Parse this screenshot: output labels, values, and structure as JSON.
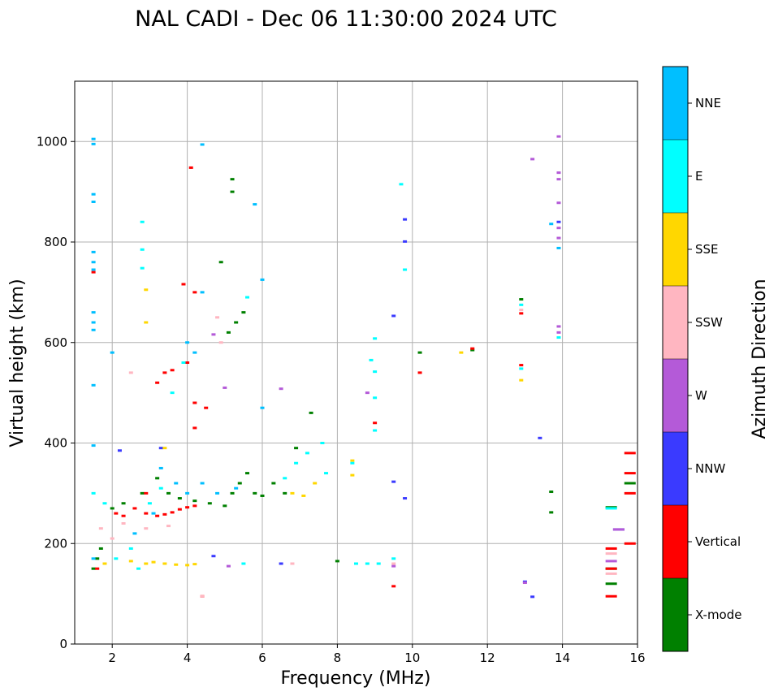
{
  "chart_data": {
    "type": "scatter",
    "title": "NAL CADI - Dec 06 11:30:00 2024 UTC",
    "xlabel": "Frequency (MHz)",
    "ylabel": "Virtual height (km)",
    "xlim": [
      1,
      16
    ],
    "ylim": [
      0,
      1120
    ],
    "xticks": [
      2,
      4,
      6,
      8,
      10,
      12,
      14,
      16
    ],
    "yticks": [
      0,
      200,
      400,
      600,
      800,
      1000
    ],
    "grid": true,
    "colorbar": {
      "label": "Azimuth Direction",
      "categories": [
        {
          "name": "X-mode",
          "color": "#008000"
        },
        {
          "name": "Vertical",
          "color": "#ff0000"
        },
        {
          "name": "NNW",
          "color": "#3a3aff"
        },
        {
          "name": "W",
          "color": "#b45ad8"
        },
        {
          "name": "SSW",
          "color": "#ffb6c1"
        },
        {
          "name": "SSE",
          "color": "#ffd700"
        },
        {
          "name": "E",
          "color": "#00ffff"
        },
        {
          "name": "NNE",
          "color": "#00bfff"
        }
      ]
    },
    "series": [
      {
        "name": "X-mode",
        "points": [
          [
            1.5,
            150
          ],
          [
            1.6,
            170
          ],
          [
            1.7,
            190
          ],
          [
            2.0,
            270
          ],
          [
            2.3,
            280
          ],
          [
            2.8,
            300
          ],
          [
            3.2,
            330
          ],
          [
            3.5,
            300
          ],
          [
            3.8,
            290
          ],
          [
            4.2,
            285
          ],
          [
            4.6,
            280
          ],
          [
            5.0,
            275
          ],
          [
            5.2,
            300
          ],
          [
            5.4,
            320
          ],
          [
            5.6,
            340
          ],
          [
            5.8,
            300
          ],
          [
            6.0,
            295
          ],
          [
            6.3,
            320
          ],
          [
            6.6,
            300
          ],
          [
            6.9,
            390
          ],
          [
            7.3,
            460
          ],
          [
            5.1,
            620
          ],
          [
            5.3,
            640
          ],
          [
            5.5,
            660
          ],
          [
            5.2,
            925
          ],
          [
            5.2,
            900
          ],
          [
            4.9,
            760
          ],
          [
            8.0,
            165
          ],
          [
            10.2,
            580
          ],
          [
            11.6,
            585
          ],
          [
            12.9,
            686
          ],
          [
            13.7,
            262
          ],
          [
            13.7,
            303
          ],
          [
            15.3,
            272
          ],
          [
            15.3,
            150
          ],
          [
            15.3,
            120
          ],
          [
            15.8,
            320
          ]
        ]
      },
      {
        "name": "Vertical",
        "points": [
          [
            1.5,
            740
          ],
          [
            1.6,
            150
          ],
          [
            2.1,
            260
          ],
          [
            2.3,
            255
          ],
          [
            2.6,
            270
          ],
          [
            2.9,
            260
          ],
          [
            3.2,
            255
          ],
          [
            3.4,
            258
          ],
          [
            3.6,
            262
          ],
          [
            3.8,
            268
          ],
          [
            4.0,
            272
          ],
          [
            4.2,
            275
          ],
          [
            2.9,
            300
          ],
          [
            3.2,
            520
          ],
          [
            3.4,
            540
          ],
          [
            3.6,
            545
          ],
          [
            3.9,
            716
          ],
          [
            4.2,
            700
          ],
          [
            4.1,
            948
          ],
          [
            4.0,
            560
          ],
          [
            4.2,
            480
          ],
          [
            4.2,
            430
          ],
          [
            4.5,
            470
          ],
          [
            9.0,
            440
          ],
          [
            9.5,
            115
          ],
          [
            10.2,
            540
          ],
          [
            11.6,
            588
          ],
          [
            12.9,
            658
          ],
          [
            12.9,
            555
          ],
          [
            15.3,
            95
          ],
          [
            15.3,
            150
          ],
          [
            15.3,
            190
          ],
          [
            15.8,
            300
          ],
          [
            15.8,
            200
          ],
          [
            15.8,
            380
          ],
          [
            15.8,
            340
          ],
          [
            4.4,
            95
          ]
        ]
      },
      {
        "name": "NNW",
        "points": [
          [
            2.2,
            385
          ],
          [
            3.3,
            390
          ],
          [
            4.7,
            175
          ],
          [
            6.5,
            160
          ],
          [
            9.5,
            653
          ],
          [
            9.5,
            323
          ],
          [
            9.8,
            845
          ],
          [
            9.8,
            801
          ],
          [
            9.8,
            290
          ],
          [
            13.0,
            124
          ],
          [
            13.2,
            94
          ],
          [
            13.4,
            410
          ],
          [
            15.5,
            228
          ],
          [
            13.9,
            840
          ]
        ]
      },
      {
        "name": "W",
        "points": [
          [
            4.7,
            616
          ],
          [
            5.0,
            510
          ],
          [
            6.5,
            508
          ],
          [
            8.8,
            500
          ],
          [
            9.5,
            155
          ],
          [
            13.0,
            122
          ],
          [
            13.2,
            965
          ],
          [
            13.9,
            1010
          ],
          [
            13.9,
            938
          ],
          [
            13.9,
            925
          ],
          [
            13.9,
            878
          ],
          [
            13.9,
            828
          ],
          [
            13.9,
            808
          ],
          [
            13.9,
            632
          ],
          [
            13.9,
            620
          ],
          [
            15.5,
            228
          ],
          [
            15.3,
            165
          ],
          [
            5.1,
            155
          ]
        ]
      },
      {
        "name": "SSW",
        "points": [
          [
            1.7,
            230
          ],
          [
            2.0,
            210
          ],
          [
            2.3,
            240
          ],
          [
            2.5,
            540
          ],
          [
            2.9,
            230
          ],
          [
            3.5,
            235
          ],
          [
            4.4,
            95
          ],
          [
            4.8,
            650
          ],
          [
            4.9,
            600
          ],
          [
            6.8,
            160
          ],
          [
            9.5,
            160
          ],
          [
            12.9,
            665
          ],
          [
            15.3,
            180
          ],
          [
            15.3,
            140
          ]
        ]
      },
      {
        "name": "SSE",
        "points": [
          [
            1.8,
            160
          ],
          [
            2.5,
            165
          ],
          [
            2.9,
            160
          ],
          [
            3.1,
            163
          ],
          [
            3.4,
            160
          ],
          [
            3.7,
            158
          ],
          [
            4.0,
            157
          ],
          [
            4.2,
            159
          ],
          [
            3.4,
            390
          ],
          [
            6.8,
            300
          ],
          [
            7.1,
            295
          ],
          [
            7.4,
            320
          ],
          [
            8.4,
            336
          ],
          [
            8.4,
            365
          ],
          [
            11.3,
            580
          ],
          [
            12.9,
            525
          ],
          [
            2.9,
            640
          ],
          [
            2.9,
            705
          ]
        ]
      },
      {
        "name": "E",
        "points": [
          [
            1.5,
            300
          ],
          [
            1.8,
            280
          ],
          [
            2.1,
            170
          ],
          [
            2.5,
            190
          ],
          [
            2.7,
            150
          ],
          [
            3.0,
            280
          ],
          [
            3.3,
            310
          ],
          [
            3.6,
            500
          ],
          [
            3.9,
            560
          ],
          [
            6.6,
            330
          ],
          [
            6.9,
            360
          ],
          [
            7.2,
            380
          ],
          [
            7.6,
            400
          ],
          [
            7.7,
            340
          ],
          [
            8.4,
            360
          ],
          [
            8.5,
            160
          ],
          [
            8.8,
            160
          ],
          [
            9.1,
            160
          ],
          [
            9.5,
            170
          ],
          [
            8.9,
            565
          ],
          [
            9.0,
            608
          ],
          [
            9.0,
            542
          ],
          [
            9.0,
            490
          ],
          [
            9.0,
            425
          ],
          [
            9.7,
            915
          ],
          [
            9.8,
            745
          ],
          [
            12.9,
            675
          ],
          [
            12.9,
            548
          ],
          [
            13.9,
            610
          ],
          [
            15.3,
            270
          ],
          [
            2.8,
            840
          ],
          [
            2.8,
            785
          ],
          [
            2.8,
            748
          ],
          [
            5.5,
            160
          ],
          [
            5.6,
            690
          ]
        ]
      },
      {
        "name": "NNE",
        "points": [
          [
            1.5,
            1005
          ],
          [
            1.5,
            995
          ],
          [
            1.5,
            895
          ],
          [
            1.5,
            880
          ],
          [
            1.5,
            780
          ],
          [
            1.5,
            760
          ],
          [
            1.5,
            745
          ],
          [
            1.5,
            660
          ],
          [
            1.5,
            640
          ],
          [
            1.5,
            625
          ],
          [
            1.5,
            515
          ],
          [
            1.5,
            395
          ],
          [
            1.5,
            170
          ],
          [
            2.0,
            580
          ],
          [
            2.6,
            220
          ],
          [
            3.1,
            260
          ],
          [
            3.3,
            350
          ],
          [
            3.7,
            320
          ],
          [
            4.0,
            300
          ],
          [
            4.4,
            320
          ],
          [
            4.8,
            300
          ],
          [
            5.3,
            310
          ],
          [
            4.2,
            580
          ],
          [
            4.0,
            600
          ],
          [
            6.0,
            470
          ],
          [
            5.8,
            875
          ],
          [
            6.0,
            725
          ],
          [
            13.7,
            836
          ],
          [
            13.9,
            788
          ],
          [
            4.4,
            994
          ],
          [
            4.4,
            700
          ]
        ]
      }
    ]
  }
}
